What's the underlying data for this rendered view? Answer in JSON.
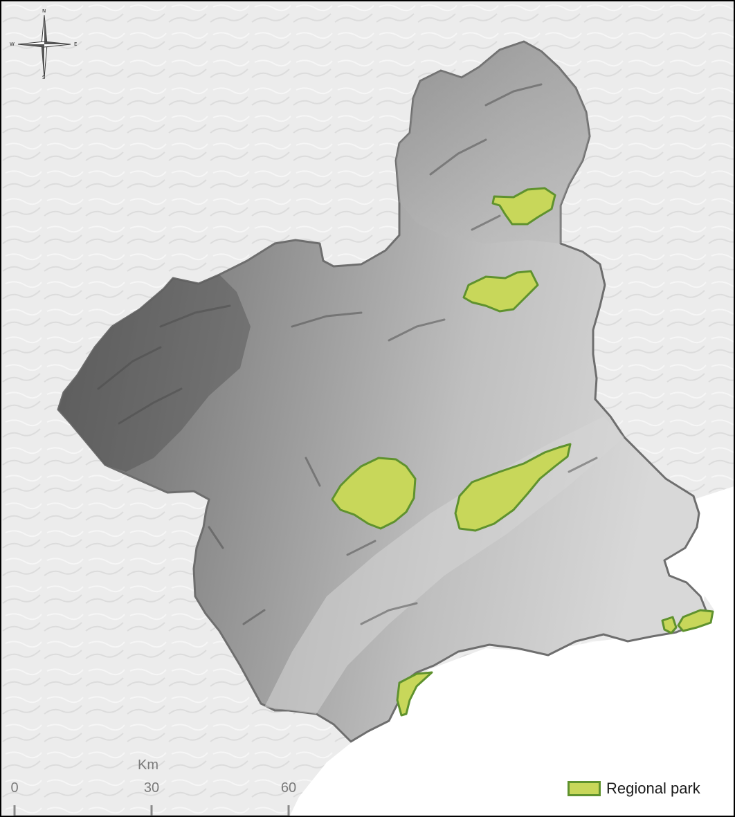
{
  "compass": {
    "north": "N",
    "south": "S",
    "east": "E",
    "west": "W"
  },
  "scale": {
    "unit": "Km",
    "ticks": [
      "0",
      "30",
      "60"
    ]
  },
  "legend": {
    "items": [
      {
        "label": "Regional park",
        "fill": "#c8d75a",
        "stroke": "#5f922e"
      }
    ]
  },
  "colors": {
    "background_relief": "#ececec",
    "region_fill": "#9a9a9a",
    "region_border": "#707070",
    "sea": "#ffffff",
    "park_fill": "#c8d75a",
    "park_stroke": "#5f922e"
  },
  "parks_count_visible": 7
}
